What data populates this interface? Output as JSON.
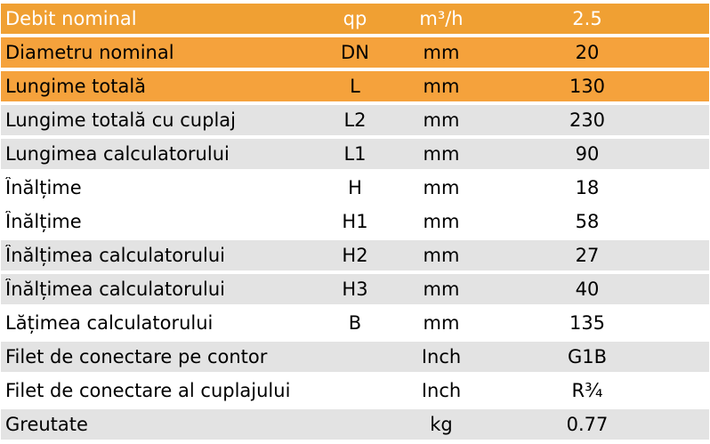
{
  "table": {
    "rows": [
      {
        "name": "Debit nominal",
        "symbol": "qp",
        "unit": "m³/h",
        "value": "2.5"
      },
      {
        "name": "Diametru nominal",
        "symbol": "DN",
        "unit": "mm",
        "value": "20"
      },
      {
        "name": "Lungime totală",
        "symbol": "L",
        "unit": "mm",
        "value": "130"
      },
      {
        "name": "Lungime totală cu cuplaj",
        "symbol": "L2",
        "unit": "mm",
        "value": "230"
      },
      {
        "name": "Lungimea calculatorului",
        "symbol": "L1",
        "unit": "mm",
        "value": "90"
      },
      {
        "name": "Înălțime",
        "symbol": "H",
        "unit": "mm",
        "value": "18"
      },
      {
        "name": "Înălțime",
        "symbol": "H1",
        "unit": "mm",
        "value": "58"
      },
      {
        "name": "Înălțimea calculatorului",
        "symbol": "H2",
        "unit": "mm",
        "value": "27"
      },
      {
        "name": "Înălțimea calculatorului",
        "symbol": "H3",
        "unit": "mm",
        "value": "40"
      },
      {
        "name": "Lățimea calculatorului",
        "symbol": "B",
        "unit": "mm",
        "value": "135"
      },
      {
        "name": "Filet de conectare pe contor",
        "symbol": "",
        "unit": "Inch",
        "value": "G1B"
      },
      {
        "name": "Filet de conectare al cuplajului",
        "symbol": "",
        "unit": "Inch",
        "value": "R¾"
      },
      {
        "name": "Greutate",
        "symbol": "",
        "unit": "kg",
        "value": "0.77"
      }
    ]
  },
  "colors": {
    "header_orange": "#f0a033",
    "highlight_orange": "#f5a23c",
    "row_grey": "#e3e3e3",
    "row_white": "#ffffff"
  }
}
